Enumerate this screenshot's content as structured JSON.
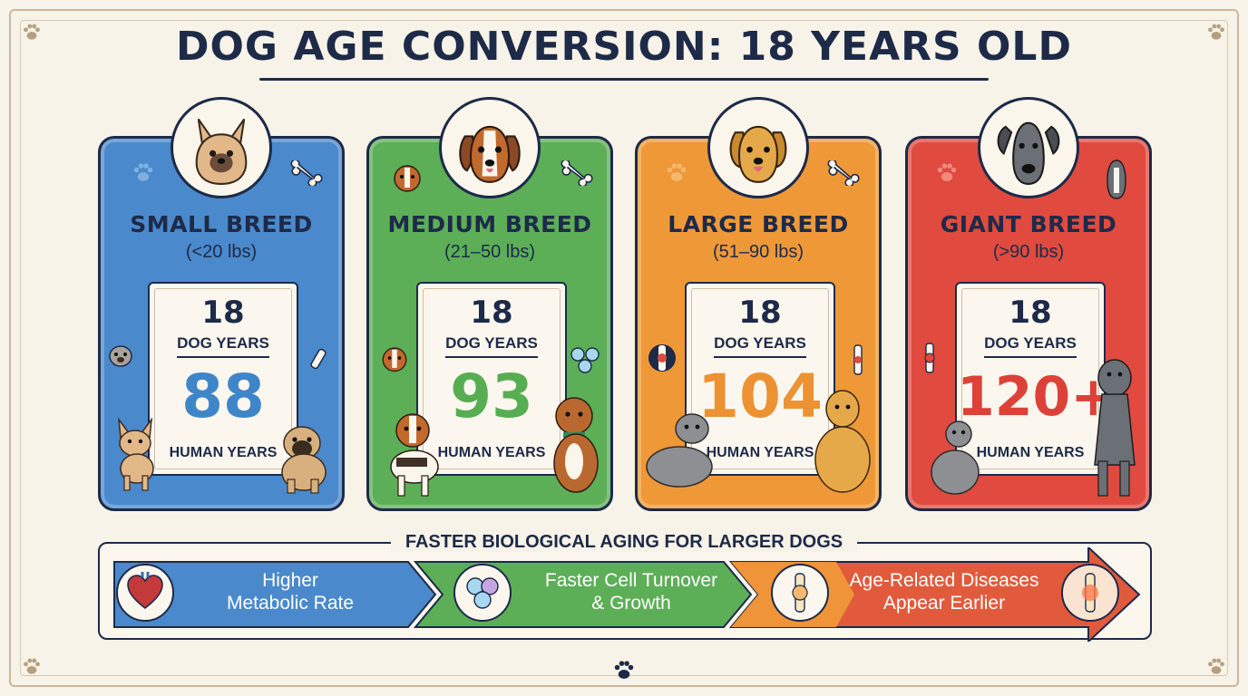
{
  "title": "DOG AGE CONVERSION: 18 YEARS OLD",
  "colors": {
    "small": "#4a89cc",
    "medium": "#5cae57",
    "large": "#ef9838",
    "giant": "#e04a3f",
    "navy": "#1d2a48",
    "background": "#f8f3e8"
  },
  "cards": [
    {
      "breed": "SMALL BREED",
      "weight": "(<20 lbs)",
      "dog_age": "18",
      "dog_years_label": "DOG YEARS",
      "human_age": "88",
      "human_years_label": "HUMAN YEARS"
    },
    {
      "breed": "MEDIUM BREED",
      "weight": "(21–50 lbs)",
      "dog_age": "18",
      "dog_years_label": "DOG YEARS",
      "human_age": "93",
      "human_years_label": "HUMAN YEARS"
    },
    {
      "breed": "LARGE BREED",
      "weight": "(51–90 lbs)",
      "dog_age": "18",
      "dog_years_label": "DOG YEARS",
      "human_age": "104",
      "human_years_label": "HUMAN YEARS"
    },
    {
      "breed": "GIANT BREED",
      "weight": "(>90 lbs)",
      "dog_age": "18",
      "dog_years_label": "DOG YEARS",
      "human_age": "120+",
      "human_years_label": "HUMAN YEARS"
    }
  ],
  "aging": {
    "heading": "FASTER BIOLOGICAL AGING FOR LARGER DOGS",
    "steps": [
      {
        "line1": "Higher",
        "line2": "Metabolic Rate",
        "icon": "heart-icon"
      },
      {
        "line1": "Faster Cell Turnover",
        "line2": "& Growth",
        "icon": "cells-icon"
      },
      {
        "line1": "Age-Related Diseases",
        "line2": "Appear Earlier",
        "icon": "joint-icon"
      }
    ]
  }
}
